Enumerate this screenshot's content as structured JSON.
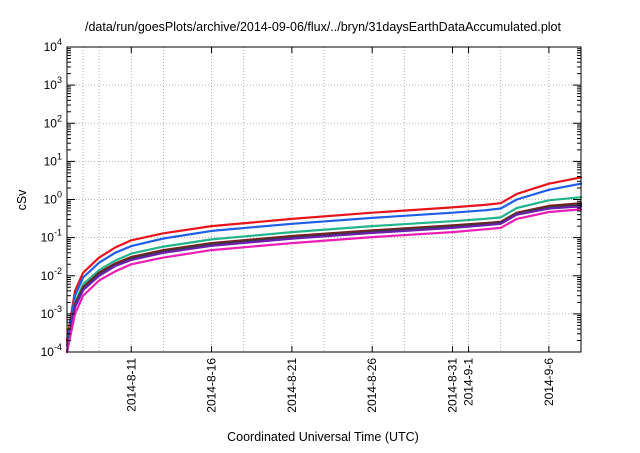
{
  "chart_data": {
    "type": "line",
    "title": "/data/run/goesPlots/archive/2014-09-06/flux/../bryn/31daysEarthDataAccumulated.plot",
    "xlabel": "Coordinated Universal Time (UTC)",
    "ylabel": "cSv",
    "yscale": "log",
    "ylim": [
      0.0001,
      10000
    ],
    "xlim": [
      "2014-08-07",
      "2014-09-08"
    ],
    "grid": true,
    "legend": "none",
    "y_tick_values": [
      0.0001,
      0.001,
      0.01,
      0.1,
      1,
      10,
      100,
      1000,
      10000
    ],
    "y_tick_labels": [
      {
        "base": "10",
        "exp": "-4"
      },
      {
        "base": "10",
        "exp": "-3"
      },
      {
        "base": "10",
        "exp": "-2"
      },
      {
        "base": "10",
        "exp": "-1"
      },
      {
        "base": "10",
        "exp": "0"
      },
      {
        "base": "10",
        "exp": "1"
      },
      {
        "base": "10",
        "exp": "2"
      },
      {
        "base": "10",
        "exp": "3"
      },
      {
        "base": "10",
        "exp": "4"
      }
    ],
    "x_ticks": [
      {
        "date": "2014-08-11",
        "label": "2014-8-11"
      },
      {
        "date": "2014-08-16",
        "label": "2014-8-16"
      },
      {
        "date": "2014-08-21",
        "label": "2014-8-21"
      },
      {
        "date": "2014-08-26",
        "label": "2014-8-26"
      },
      {
        "date": "2014-08-31",
        "label": "2014-8-31"
      },
      {
        "date": "2014-09-01",
        "label": "2014-9-1"
      },
      {
        "date": "2014-09-06",
        "label": "2014-9-6"
      }
    ],
    "x_grid_dates": [
      "2014-08-08",
      "2014-08-09",
      "2014-08-11",
      "2014-08-13",
      "2014-08-16",
      "2014-08-18",
      "2014-08-21",
      "2014-08-23",
      "2014-08-26",
      "2014-08-28",
      "2014-08-31",
      "2014-09-01",
      "2014-09-03",
      "2014-09-06"
    ],
    "series": [
      {
        "color": "#e8141c",
        "points": [
          [
            "2014-08-07",
            0.0002
          ],
          [
            "2014-08-07T12:00",
            0.004
          ],
          [
            "2014-08-08",
            0.012
          ],
          [
            "2014-08-09",
            0.03
          ],
          [
            "2014-08-10",
            0.055
          ],
          [
            "2014-08-11",
            0.085
          ],
          [
            "2014-08-13",
            0.13
          ],
          [
            "2014-08-16",
            0.2
          ],
          [
            "2014-08-21",
            0.31
          ],
          [
            "2014-08-26",
            0.45
          ],
          [
            "2014-08-31",
            0.62
          ],
          [
            "2014-09-02",
            0.72
          ],
          [
            "2014-09-03",
            0.8
          ],
          [
            "2014-09-04",
            1.4
          ],
          [
            "2014-09-06",
            2.6
          ],
          [
            "2014-09-08",
            3.8
          ]
        ]
      },
      {
        "color": "#1f5fe6",
        "points": [
          [
            "2014-08-07",
            0.00015
          ],
          [
            "2014-08-07T12:00",
            0.003
          ],
          [
            "2014-08-08",
            0.009
          ],
          [
            "2014-08-09",
            0.022
          ],
          [
            "2014-08-10",
            0.04
          ],
          [
            "2014-08-11",
            0.06
          ],
          [
            "2014-08-13",
            0.095
          ],
          [
            "2014-08-16",
            0.15
          ],
          [
            "2014-08-21",
            0.23
          ],
          [
            "2014-08-26",
            0.33
          ],
          [
            "2014-08-31",
            0.45
          ],
          [
            "2014-09-02",
            0.52
          ],
          [
            "2014-09-03",
            0.58
          ],
          [
            "2014-09-04",
            1.0
          ],
          [
            "2014-09-06",
            1.8
          ],
          [
            "2014-09-08",
            2.6
          ]
        ]
      },
      {
        "color": "#22b58c",
        "points": [
          [
            "2014-08-07",
            0.0001
          ],
          [
            "2014-08-07T12:00",
            0.002
          ],
          [
            "2014-08-08",
            0.006
          ],
          [
            "2014-08-09",
            0.014
          ],
          [
            "2014-08-10",
            0.025
          ],
          [
            "2014-08-11",
            0.038
          ],
          [
            "2014-08-13",
            0.058
          ],
          [
            "2014-08-16",
            0.09
          ],
          [
            "2014-08-21",
            0.14
          ],
          [
            "2014-08-26",
            0.2
          ],
          [
            "2014-08-31",
            0.27
          ],
          [
            "2014-09-02",
            0.31
          ],
          [
            "2014-09-03",
            0.34
          ],
          [
            "2014-09-04",
            0.6
          ],
          [
            "2014-09-06",
            0.95
          ],
          [
            "2014-09-08",
            1.15
          ]
        ]
      },
      {
        "color": "#7a1e1e",
        "points": [
          [
            "2014-08-07",
            0.0001
          ],
          [
            "2014-08-07T12:00",
            0.0018
          ],
          [
            "2014-08-08",
            0.005
          ],
          [
            "2014-08-09",
            0.012
          ],
          [
            "2014-08-10",
            0.021
          ],
          [
            "2014-08-11",
            0.031
          ],
          [
            "2014-08-13",
            0.047
          ],
          [
            "2014-08-16",
            0.072
          ],
          [
            "2014-08-21",
            0.11
          ],
          [
            "2014-08-26",
            0.155
          ],
          [
            "2014-08-31",
            0.21
          ],
          [
            "2014-09-02",
            0.24
          ],
          [
            "2014-09-03",
            0.26
          ],
          [
            "2014-09-04",
            0.45
          ],
          [
            "2014-09-06",
            0.68
          ],
          [
            "2014-09-08",
            0.8
          ]
        ]
      },
      {
        "color": "#3b3b3b",
        "points": [
          [
            "2014-08-07",
            0.0001
          ],
          [
            "2014-08-07T12:00",
            0.0016
          ],
          [
            "2014-08-08",
            0.0045
          ],
          [
            "2014-08-09",
            0.011
          ],
          [
            "2014-08-10",
            0.019
          ],
          [
            "2014-08-11",
            0.028
          ],
          [
            "2014-08-13",
            0.043
          ],
          [
            "2014-08-16",
            0.066
          ],
          [
            "2014-08-21",
            0.1
          ],
          [
            "2014-08-26",
            0.142
          ],
          [
            "2014-08-31",
            0.195
          ],
          [
            "2014-09-02",
            0.225
          ],
          [
            "2014-09-03",
            0.245
          ],
          [
            "2014-09-04",
            0.42
          ],
          [
            "2014-09-06",
            0.62
          ],
          [
            "2014-09-08",
            0.72
          ]
        ]
      },
      {
        "color": "#6a1fb0",
        "points": [
          [
            "2014-08-07",
            0.0001
          ],
          [
            "2014-08-07T12:00",
            0.0015
          ],
          [
            "2014-08-08",
            0.0042
          ],
          [
            "2014-08-09",
            0.01
          ],
          [
            "2014-08-10",
            0.018
          ],
          [
            "2014-08-11",
            0.026
          ],
          [
            "2014-08-13",
            0.04
          ],
          [
            "2014-08-16",
            0.061
          ],
          [
            "2014-08-21",
            0.094
          ],
          [
            "2014-08-26",
            0.133
          ],
          [
            "2014-08-31",
            0.18
          ],
          [
            "2014-09-02",
            0.21
          ],
          [
            "2014-09-03",
            0.23
          ],
          [
            "2014-09-04",
            0.4
          ],
          [
            "2014-09-06",
            0.58
          ],
          [
            "2014-09-08",
            0.66
          ]
        ]
      },
      {
        "color": "#ea1eb4",
        "points": [
          [
            "2014-08-07",
            0.0001
          ],
          [
            "2014-08-07T12:00",
            0.001
          ],
          [
            "2014-08-08",
            0.003
          ],
          [
            "2014-08-09",
            0.0075
          ],
          [
            "2014-08-10",
            0.013
          ],
          [
            "2014-08-11",
            0.02
          ],
          [
            "2014-08-13",
            0.03
          ],
          [
            "2014-08-16",
            0.047
          ],
          [
            "2014-08-21",
            0.072
          ],
          [
            "2014-08-26",
            0.103
          ],
          [
            "2014-08-31",
            0.14
          ],
          [
            "2014-09-02",
            0.165
          ],
          [
            "2014-09-03",
            0.18
          ],
          [
            "2014-09-04",
            0.31
          ],
          [
            "2014-09-06",
            0.47
          ],
          [
            "2014-09-08",
            0.55
          ]
        ]
      }
    ]
  }
}
